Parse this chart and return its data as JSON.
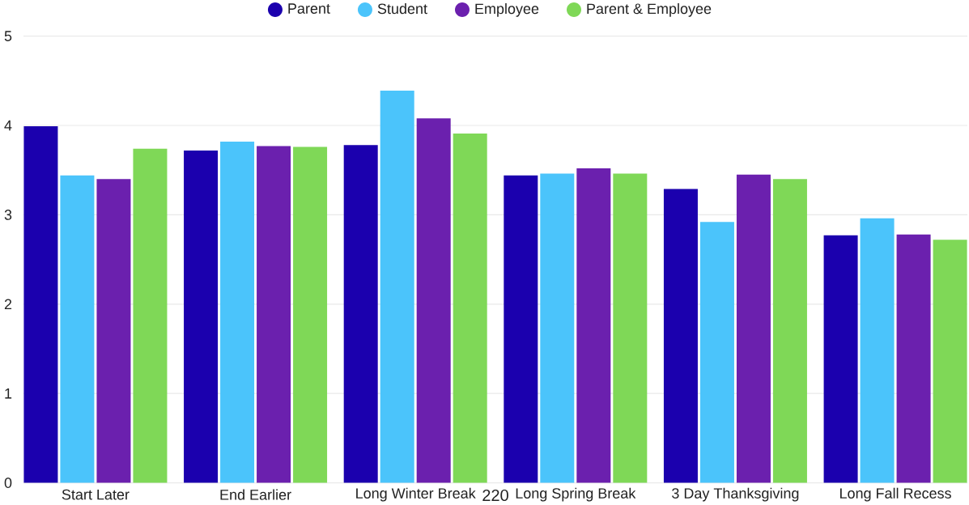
{
  "chart_data": {
    "type": "bar",
    "categories": [
      "Start Later",
      "End Earlier",
      "Long Winter Break",
      "Long Spring Break",
      "3 Day Thanksgiving",
      "Long Fall Recess"
    ],
    "series": [
      {
        "name": "Parent",
        "color": "#1b00ae",
        "values": [
          3.99,
          3.72,
          3.78,
          3.44,
          3.29,
          2.77
        ]
      },
      {
        "name": "Student",
        "color": "#4bc4fb",
        "values": [
          3.44,
          3.82,
          4.39,
          3.46,
          2.92,
          2.96
        ]
      },
      {
        "name": "Employee",
        "color": "#6b20ae",
        "values": [
          3.4,
          3.77,
          4.08,
          3.52,
          3.45,
          2.78
        ]
      },
      {
        "name": "Parent & Employee",
        "color": "#7fd857",
        "values": [
          3.74,
          3.76,
          3.91,
          3.46,
          3.4,
          2.72
        ]
      }
    ],
    "ylim": [
      0,
      5
    ],
    "yticks": [
      0,
      1,
      2,
      3,
      4,
      5
    ],
    "grid": "y",
    "legend": "top",
    "annotations": [
      "220"
    ]
  }
}
